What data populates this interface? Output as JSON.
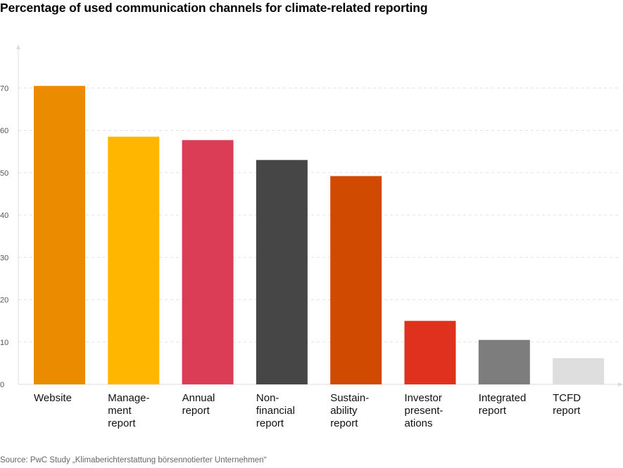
{
  "title": "Percentage of used communication channels for climate-related reporting",
  "source": "Source: PwC Study „Klimaberichterstattung börsennotierter Unternehmen“",
  "chart_data": {
    "type": "bar",
    "title": "Percentage of used communication channels for climate-related reporting",
    "xlabel": "",
    "ylabel": "",
    "ylim": [
      0,
      80
    ],
    "yticks": [
      0,
      10,
      20,
      30,
      40,
      50,
      60,
      70
    ],
    "grid": true,
    "legend": "none",
    "categories": [
      [
        "Website"
      ],
      [
        "Manage-",
        "ment",
        "report"
      ],
      [
        "Annual",
        "report"
      ],
      [
        "Non-",
        "financial",
        "report"
      ],
      [
        "Sustain-",
        "ability",
        "report"
      ],
      [
        "Investor",
        "present-",
        "ations"
      ],
      [
        "Integrated",
        "report"
      ],
      [
        "TCFD",
        "report"
      ]
    ],
    "values": [
      70.5,
      58.5,
      57.7,
      53.0,
      49.2,
      15.0,
      10.5,
      6.2
    ],
    "colors": [
      "#EB8C00",
      "#FFB600",
      "#DB3C56",
      "#464646",
      "#D04A02",
      "#E0301E",
      "#7D7D7D",
      "#DEDEDE"
    ]
  }
}
